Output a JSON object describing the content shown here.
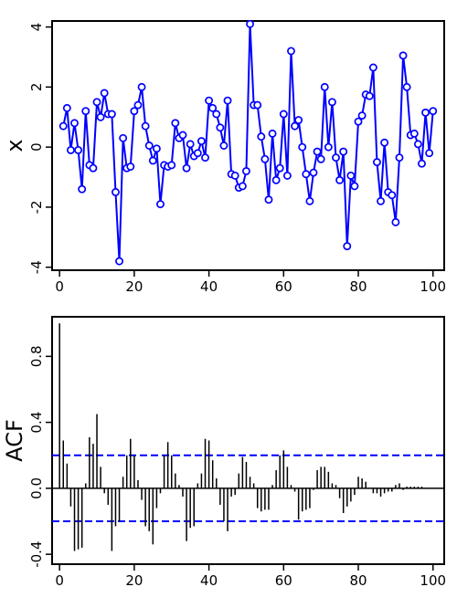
{
  "chart_data": [
    {
      "type": "line",
      "ylabel": "x",
      "xlabel": "",
      "xlim": [
        -2,
        103
      ],
      "ylim": [
        -4.1,
        4.2
      ],
      "xticks": [
        0,
        20,
        40,
        60,
        80,
        100
      ],
      "xtick_labels": [
        "0",
        "20",
        "40",
        "60",
        "80",
        "100"
      ],
      "yticks": [
        -4,
        -2,
        0,
        2,
        4
      ],
      "ytick_labels": [
        "-4",
        "-2",
        "0",
        "2",
        "4"
      ],
      "line_color": "#0000ff",
      "marker": "open-circle",
      "x": [
        1,
        2,
        3,
        4,
        5,
        6,
        7,
        8,
        9,
        10,
        11,
        12,
        13,
        14,
        15,
        16,
        17,
        18,
        19,
        20,
        21,
        22,
        23,
        24,
        25,
        26,
        27,
        28,
        29,
        30,
        31,
        32,
        33,
        34,
        35,
        36,
        37,
        38,
        39,
        40,
        41,
        42,
        43,
        44,
        45,
        46,
        47,
        48,
        49,
        50,
        51,
        52,
        53,
        54,
        55,
        56,
        57,
        58,
        59,
        60,
        61,
        62,
        63,
        64,
        65,
        66,
        67,
        68,
        69,
        70,
        71,
        72,
        73,
        74,
        75,
        76,
        77,
        78,
        79,
        80,
        81,
        82,
        83,
        84,
        85,
        86,
        87,
        88,
        89,
        90,
        91,
        92,
        93,
        94,
        95,
        96,
        97,
        98,
        99,
        100
      ],
      "y": [
        0.7,
        1.3,
        -0.1,
        0.8,
        -0.1,
        -1.4,
        1.2,
        -0.6,
        -0.7,
        1.5,
        1.0,
        1.8,
        1.1,
        1.1,
        -1.5,
        -3.8,
        0.3,
        -0.7,
        -0.65,
        1.2,
        1.4,
        2.0,
        0.7,
        0.05,
        -0.45,
        -0.05,
        -1.9,
        -0.6,
        -0.65,
        -0.6,
        0.8,
        0.3,
        0.4,
        -0.7,
        0.1,
        -0.3,
        -0.2,
        0.2,
        -0.35,
        1.55,
        1.3,
        1.1,
        0.65,
        0.05,
        1.55,
        -0.9,
        -0.95,
        -1.35,
        -1.3,
        -0.8,
        4.1,
        1.4,
        1.4,
        0.35,
        -0.4,
        -1.75,
        0.45,
        -1.1,
        -0.7,
        1.1,
        -0.95,
        3.2,
        0.7,
        0.9,
        0.0,
        -0.9,
        -1.8,
        -0.85,
        -0.15,
        -0.4,
        2.0,
        0.0,
        1.5,
        -0.35,
        -1.1,
        -0.15,
        -3.3,
        -0.95,
        -1.3,
        0.85,
        1.05,
        1.75,
        1.7,
        2.65,
        -0.5,
        -1.8,
        0.15,
        -1.5,
        -1.6,
        -2.5,
        -0.35,
        3.05,
        2.0,
        0.4,
        0.45,
        0.1,
        -0.55,
        1.15,
        -0.2,
        1.2
      ]
    },
    {
      "type": "bar",
      "ylabel": "ACF",
      "xlabel": "",
      "xlim": [
        -2,
        103
      ],
      "ylim": [
        -0.46,
        1.04
      ],
      "xticks": [
        0,
        20,
        40,
        60,
        80,
        100
      ],
      "xtick_labels": [
        "0",
        "20",
        "40",
        "60",
        "80",
        "100"
      ],
      "yticks": [
        -0.4,
        0.0,
        0.4,
        0.8
      ],
      "ytick_labels": [
        "-0.4",
        "0.0",
        "0.4",
        "0.8"
      ],
      "bar_color": "#000000",
      "confidence_band": 0.2,
      "confidence_color": "#0000ff",
      "lags": [
        0,
        1,
        2,
        3,
        4,
        5,
        6,
        7,
        8,
        9,
        10,
        11,
        12,
        13,
        14,
        15,
        16,
        17,
        18,
        19,
        20,
        21,
        22,
        23,
        24,
        25,
        26,
        27,
        28,
        29,
        30,
        31,
        32,
        33,
        34,
        35,
        36,
        37,
        38,
        39,
        40,
        41,
        42,
        43,
        44,
        45,
        46,
        47,
        48,
        49,
        50,
        51,
        52,
        53,
        54,
        55,
        56,
        57,
        58,
        59,
        60,
        61,
        62,
        63,
        64,
        65,
        66,
        67,
        68,
        69,
        70,
        71,
        72,
        73,
        74,
        75,
        76,
        77,
        78,
        79,
        80,
        81,
        82,
        83,
        84,
        85,
        86,
        87,
        88,
        89,
        90,
        91,
        92,
        93,
        94,
        95,
        96,
        97,
        98,
        99
      ],
      "values": [
        1.0,
        0.29,
        0.15,
        -0.11,
        -0.38,
        -0.37,
        -0.36,
        0.03,
        0.31,
        0.27,
        0.45,
        0.13,
        -0.03,
        -0.1,
        -0.38,
        -0.23,
        -0.2,
        0.07,
        0.2,
        0.3,
        0.2,
        0.05,
        -0.07,
        -0.23,
        -0.26,
        -0.34,
        -0.12,
        -0.03,
        0.2,
        0.28,
        0.2,
        0.09,
        0.02,
        -0.05,
        -0.32,
        -0.24,
        -0.23,
        0.03,
        0.09,
        0.3,
        0.29,
        0.17,
        0.06,
        -0.1,
        -0.2,
        -0.26,
        -0.05,
        -0.04,
        0.09,
        0.19,
        0.16,
        0.07,
        0.03,
        -0.12,
        -0.14,
        -0.13,
        -0.13,
        0.02,
        0.11,
        0.2,
        0.23,
        0.13,
        0.02,
        -0.02,
        -0.19,
        -0.14,
        -0.13,
        -0.12,
        -0.01,
        0.11,
        0.13,
        0.13,
        0.1,
        0.03,
        0.02,
        -0.06,
        -0.15,
        -0.11,
        -0.08,
        -0.04,
        0.07,
        0.06,
        0.04,
        0.0,
        -0.03,
        -0.03,
        -0.05,
        -0.03,
        -0.02,
        -0.02,
        0.02,
        0.03,
        -0.01,
        0.01,
        0.01,
        0.01,
        0.01,
        0.01,
        0.0,
        0.0
      ]
    }
  ]
}
